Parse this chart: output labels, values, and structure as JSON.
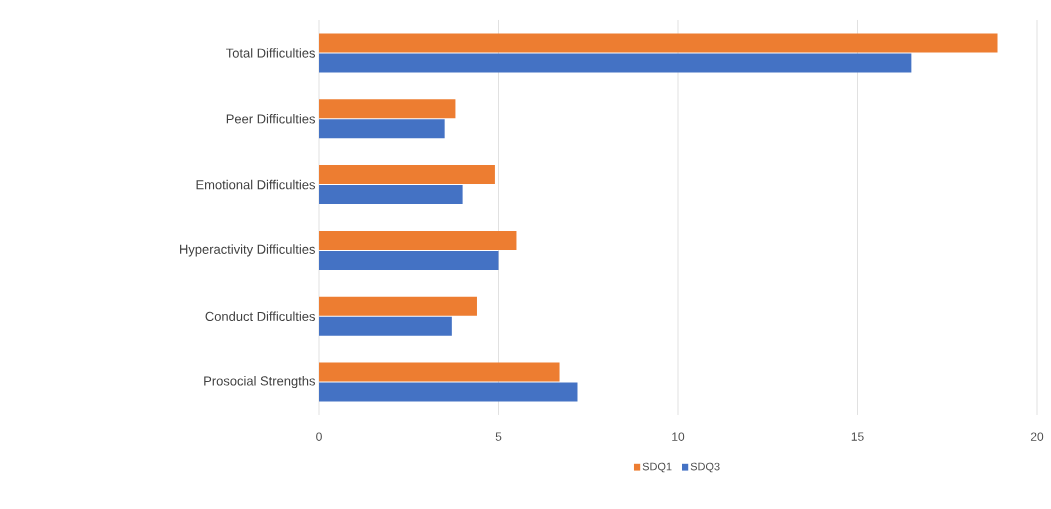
{
  "chart_data": {
    "type": "bar",
    "orientation": "horizontal",
    "categories": [
      "Total Difficulties",
      "Peer Difficulties",
      "Emotional Difficulties",
      "Hyperactivity Difficulties",
      "Conduct Difficulties",
      "Prosocial Strengths"
    ],
    "series": [
      {
        "name": "SDQ1",
        "color": "#ed7d31",
        "values": [
          18.9,
          3.8,
          4.9,
          5.5,
          4.4,
          6.7
        ]
      },
      {
        "name": "SDQ3",
        "color": "#4472c4",
        "values": [
          16.5,
          3.5,
          4.0,
          5.0,
          3.7,
          7.2
        ]
      }
    ],
    "xlim": [
      0,
      20
    ],
    "xticks": [
      0,
      5,
      10,
      15,
      20
    ],
    "grid": "x",
    "legend": "bottom"
  }
}
